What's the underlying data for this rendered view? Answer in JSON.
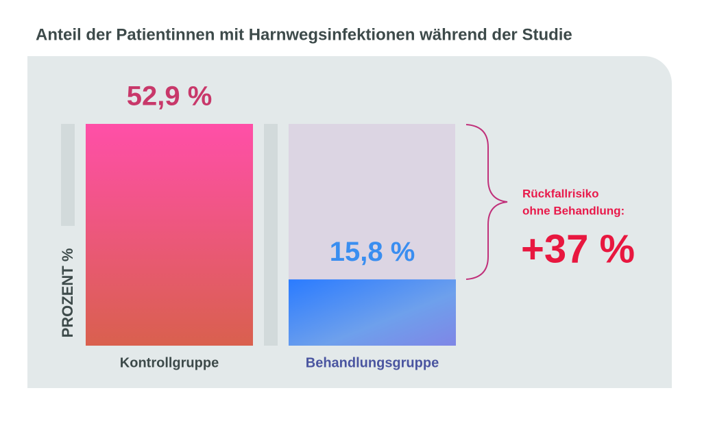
{
  "chart_data": {
    "type": "bar",
    "title": "Anteil der Patientinnen mit Harnwegsinfektionen während der Studie",
    "y_label": "PROZENT %",
    "categories": [
      "Kontrollgruppe",
      "Behandlungsgruppe"
    ],
    "values": [
      52.9,
      15.8
    ],
    "value_labels": [
      "52,9 %",
      "15,8 %"
    ],
    "colors": [
      "#ff4fa8",
      "#2a7bff"
    ],
    "annotation": {
      "lines": [
        "Rückfallrisiko",
        "ohne Behandlung:"
      ],
      "value": "+37 %"
    }
  }
}
